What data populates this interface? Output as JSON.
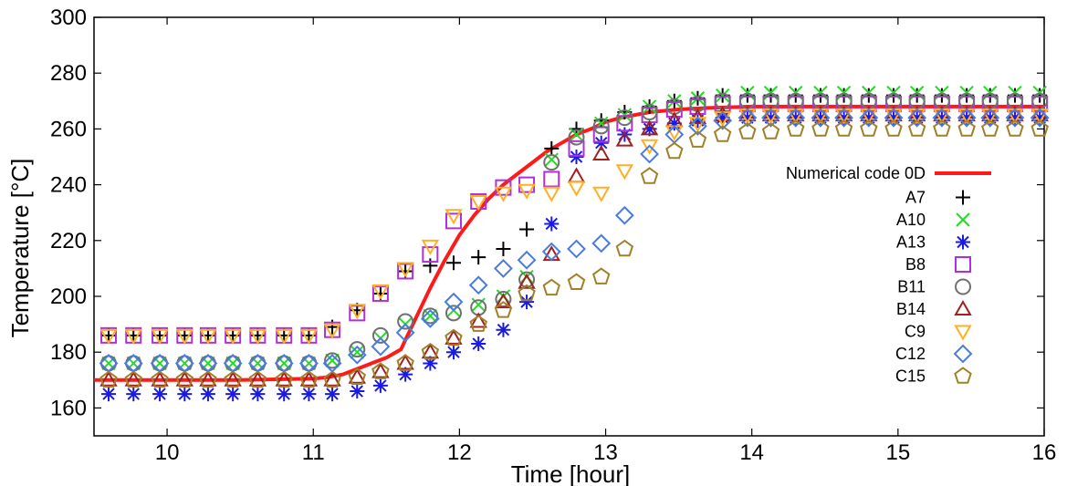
{
  "chart_data": {
    "type": "scatter",
    "title": "",
    "xlabel": "Time [hour]",
    "ylabel": "Temperature [°C]",
    "xlim": [
      9.5,
      16
    ],
    "ylim": [
      150,
      300
    ],
    "xticks": [
      10,
      11,
      12,
      13,
      14,
      15,
      16
    ],
    "yticks": [
      160,
      180,
      200,
      220,
      240,
      260,
      280,
      300
    ],
    "grid": false,
    "legend_position": "right",
    "line_series": {
      "name": "Numerical code 0D",
      "color": "#ff1a1a",
      "x": [
        9.5,
        10,
        10.5,
        11,
        11.1,
        11.2,
        11.3,
        11.4,
        11.5,
        11.6,
        11.7,
        11.8,
        11.9,
        12,
        12.1,
        12.2,
        12.3,
        12.4,
        12.5,
        12.6,
        12.7,
        12.8,
        12.9,
        13,
        13.1,
        13.2,
        13.3,
        13.5,
        13.7,
        14,
        14.5,
        15,
        15.5,
        16
      ],
      "y": [
        170,
        170,
        170,
        170.5,
        171,
        172,
        174,
        176,
        178,
        181,
        192,
        203,
        213,
        222,
        229,
        235,
        240,
        244,
        248,
        252,
        255,
        258,
        260,
        262.5,
        264,
        265,
        266,
        267,
        267.5,
        268,
        268,
        268,
        268,
        268
      ]
    },
    "series": [
      {
        "name": "A7",
        "marker": "plus",
        "color": "#000000",
        "x": [
          9.6,
          9.77,
          9.95,
          10.12,
          10.28,
          10.45,
          10.62,
          10.8,
          10.97,
          11.13,
          11.3,
          11.46,
          11.63,
          11.8,
          11.96,
          12.13,
          12.3,
          12.46,
          12.63,
          12.8,
          12.97,
          13.13,
          13.3,
          13.47,
          13.63,
          13.8,
          13.97,
          14.13,
          14.3,
          14.47,
          14.63,
          14.8,
          14.97,
          15.13,
          15.3,
          15.47,
          15.63,
          15.8,
          15.97
        ],
        "y": [
          186,
          186,
          186,
          186,
          186,
          186,
          186,
          186,
          186,
          189,
          195,
          201,
          209,
          211,
          212,
          214,
          217,
          224,
          253,
          260,
          263,
          266,
          268,
          270,
          271,
          272,
          272,
          272,
          272,
          272,
          272,
          272,
          272,
          272,
          272,
          272,
          272,
          272,
          272
        ]
      },
      {
        "name": "A10",
        "marker": "x",
        "color": "#22dd22",
        "x": [
          9.6,
          9.77,
          9.95,
          10.12,
          10.28,
          10.45,
          10.62,
          10.8,
          10.97,
          11.13,
          11.3,
          11.46,
          11.63,
          11.8,
          11.96,
          12.13,
          12.3,
          12.46,
          12.63,
          12.8,
          12.97,
          13.13,
          13.3,
          13.47,
          13.63,
          13.8,
          13.97,
          14.13,
          14.3,
          14.47,
          14.63,
          14.8,
          14.97,
          15.13,
          15.3,
          15.47,
          15.63,
          15.8,
          15.97
        ],
        "y": [
          176,
          176,
          176,
          176,
          176,
          176,
          176,
          176,
          176,
          177,
          180,
          185,
          190,
          193,
          195,
          197,
          200,
          207,
          249,
          258,
          262,
          265,
          268,
          270,
          271,
          272,
          273,
          273,
          273,
          273,
          273,
          273,
          273,
          273,
          273,
          273,
          273,
          273,
          273
        ]
      },
      {
        "name": "A13",
        "marker": "asterisk",
        "color": "#1a1ae6",
        "x": [
          9.6,
          9.77,
          9.95,
          10.12,
          10.28,
          10.45,
          10.62,
          10.8,
          10.97,
          11.13,
          11.3,
          11.46,
          11.63,
          11.8,
          11.96,
          12.13,
          12.3,
          12.46,
          12.63,
          12.8,
          12.97,
          13.13,
          13.3,
          13.47,
          13.63,
          13.8,
          13.97,
          14.13,
          14.3,
          14.47,
          14.63,
          14.8,
          14.97,
          15.13,
          15.3,
          15.47,
          15.63,
          15.8,
          15.97
        ],
        "y": [
          165,
          165,
          165,
          165,
          165,
          165,
          165,
          165,
          165,
          165,
          166,
          168,
          172,
          176,
          180,
          183,
          188,
          198,
          226,
          250,
          255,
          258,
          260,
          262,
          263,
          264,
          264,
          264,
          264,
          264,
          264,
          264,
          264,
          264,
          264,
          264,
          264,
          264,
          264
        ]
      },
      {
        "name": "B8",
        "marker": "square",
        "color": "#b030d8",
        "x": [
          9.6,
          9.77,
          9.95,
          10.12,
          10.28,
          10.45,
          10.62,
          10.8,
          10.97,
          11.13,
          11.3,
          11.46,
          11.63,
          11.8,
          11.96,
          12.13,
          12.3,
          12.46,
          12.63,
          12.8,
          12.97,
          13.13,
          13.3,
          13.47,
          13.63,
          13.8,
          13.97,
          14.13,
          14.3,
          14.47,
          14.63,
          14.8,
          14.97,
          15.13,
          15.3,
          15.47,
          15.63,
          15.8,
          15.97
        ],
        "y": [
          186,
          186,
          186,
          186,
          186,
          186,
          186,
          186,
          186,
          188,
          194,
          201,
          209,
          215,
          227,
          234,
          239,
          240,
          242,
          253,
          258,
          262,
          265,
          267,
          268,
          269,
          269,
          269,
          269,
          269,
          269,
          269,
          269,
          269,
          269,
          269,
          269,
          269,
          269
        ]
      },
      {
        "name": "B11",
        "marker": "circle",
        "color": "#707070",
        "x": [
          9.6,
          9.77,
          9.95,
          10.12,
          10.28,
          10.45,
          10.62,
          10.8,
          10.97,
          11.13,
          11.3,
          11.46,
          11.63,
          11.8,
          11.96,
          12.13,
          12.3,
          12.46,
          12.63,
          12.8,
          12.97,
          13.13,
          13.3,
          13.47,
          13.63,
          13.8,
          13.97,
          14.13,
          14.3,
          14.47,
          14.63,
          14.8,
          14.97,
          15.13,
          15.3,
          15.47,
          15.63,
          15.8,
          15.97
        ],
        "y": [
          176,
          176,
          176,
          176,
          176,
          176,
          176,
          176,
          176,
          177,
          181,
          186,
          191,
          193,
          194,
          196,
          199,
          206,
          248,
          257,
          261,
          264,
          266,
          268,
          269,
          270,
          270,
          270,
          270,
          270,
          270,
          270,
          270,
          270,
          270,
          270,
          270,
          270,
          270
        ]
      },
      {
        "name": "B14",
        "marker": "triangle",
        "color": "#a02020",
        "x": [
          9.6,
          9.77,
          9.95,
          10.12,
          10.28,
          10.45,
          10.62,
          10.8,
          10.97,
          11.13,
          11.3,
          11.46,
          11.63,
          11.8,
          11.96,
          12.13,
          12.3,
          12.46,
          12.63,
          12.8,
          12.97,
          13.13,
          13.3,
          13.47,
          13.63,
          13.8,
          13.97,
          14.13,
          14.3,
          14.47,
          14.63,
          14.8,
          14.97,
          15.13,
          15.3,
          15.47,
          15.63,
          15.8,
          15.97
        ],
        "y": [
          170,
          170,
          170,
          170,
          170,
          170,
          170,
          170,
          170,
          170,
          171,
          173,
          176,
          180,
          185,
          191,
          198,
          205,
          215,
          243,
          251,
          256,
          260,
          263,
          264,
          265,
          265,
          265,
          265,
          265,
          265,
          265,
          265,
          265,
          265,
          265,
          265,
          265,
          265
        ]
      },
      {
        "name": "C9",
        "marker": "triangle-down",
        "color": "#ffb020",
        "x": [
          9.6,
          9.77,
          9.95,
          10.12,
          10.28,
          10.45,
          10.62,
          10.8,
          10.97,
          11.13,
          11.3,
          11.46,
          11.63,
          11.8,
          11.96,
          12.13,
          12.3,
          12.46,
          12.63,
          12.8,
          12.97,
          13.13,
          13.3,
          13.47,
          13.63,
          13.8,
          13.97,
          14.13,
          14.3,
          14.47,
          14.63,
          14.8,
          14.97,
          15.13,
          15.3,
          15.47,
          15.63,
          15.8,
          15.97
        ],
        "y": [
          186,
          186,
          186,
          186,
          186,
          186,
          186,
          186,
          186,
          188,
          195,
          202,
          210,
          218,
          229,
          234,
          237,
          238,
          237,
          239,
          237,
          245,
          254,
          259,
          262,
          264,
          265,
          265,
          265,
          265,
          265,
          265,
          265,
          265,
          265,
          265,
          265,
          265,
          265
        ]
      },
      {
        "name": "C12",
        "marker": "diamond",
        "color": "#4a7be0",
        "x": [
          9.6,
          9.77,
          9.95,
          10.12,
          10.28,
          10.45,
          10.62,
          10.8,
          10.97,
          11.13,
          11.3,
          11.46,
          11.63,
          11.8,
          11.96,
          12.13,
          12.3,
          12.46,
          12.63,
          12.8,
          12.97,
          13.13,
          13.3,
          13.47,
          13.63,
          13.8,
          13.97,
          14.13,
          14.3,
          14.47,
          14.63,
          14.8,
          14.97,
          15.13,
          15.3,
          15.47,
          15.63,
          15.8,
          15.97
        ],
        "y": [
          176,
          176,
          176,
          176,
          176,
          176,
          176,
          176,
          176,
          176,
          179,
          182,
          187,
          192,
          198,
          204,
          210,
          213,
          216,
          217,
          219,
          229,
          251,
          258,
          261,
          263,
          264,
          264,
          264,
          264,
          264,
          264,
          264,
          264,
          264,
          264,
          264,
          264,
          264
        ]
      },
      {
        "name": "C15",
        "marker": "pentagon",
        "color": "#a08028",
        "x": [
          9.6,
          9.77,
          9.95,
          10.12,
          10.28,
          10.45,
          10.62,
          10.8,
          10.97,
          11.13,
          11.3,
          11.46,
          11.63,
          11.8,
          11.96,
          12.13,
          12.3,
          12.46,
          12.63,
          12.8,
          12.97,
          13.13,
          13.3,
          13.47,
          13.63,
          13.8,
          13.97,
          14.13,
          14.3,
          14.47,
          14.63,
          14.8,
          14.97,
          15.13,
          15.3,
          15.47,
          15.63,
          15.8,
          15.97
        ],
        "y": [
          170,
          170,
          170,
          170,
          170,
          170,
          170,
          170,
          170,
          170,
          171,
          173,
          176,
          180,
          185,
          190,
          195,
          201,
          203,
          205,
          207,
          217,
          243,
          252,
          256,
          258,
          259,
          259,
          260,
          260,
          260,
          260,
          260,
          260,
          260,
          260,
          260,
          260,
          260
        ]
      }
    ]
  }
}
